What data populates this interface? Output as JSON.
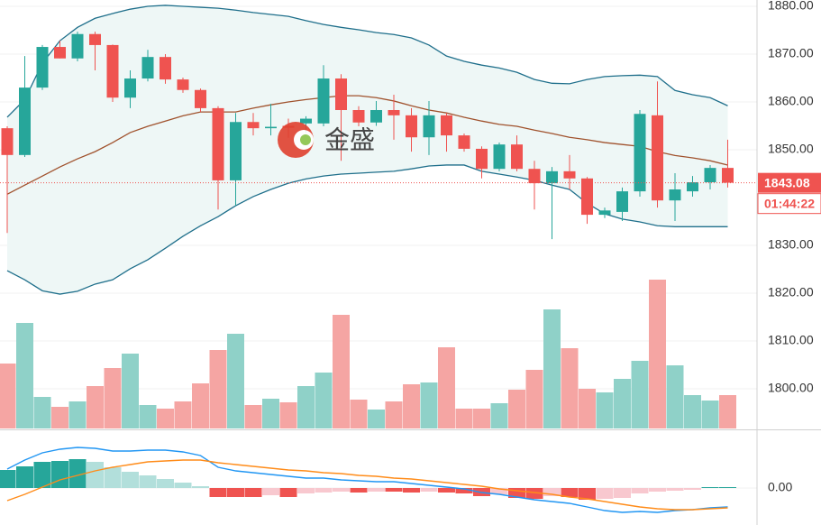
{
  "watermark": "金盛",
  "chart_data": [
    {
      "type": "candlestick",
      "ylim": [
        1791.7,
        1881.32
      ],
      "yticks": [
        {
          "value": 1880,
          "label": "1880.00"
        },
        {
          "value": 1870,
          "label": "1870.00"
        },
        {
          "value": 1860,
          "label": "1860.00"
        },
        {
          "value": 1850,
          "label": "1850.00"
        },
        {
          "value": 1830,
          "label": "1830.00"
        },
        {
          "value": 1820,
          "label": "1820.00"
        },
        {
          "value": 1810,
          "label": "1810.00"
        },
        {
          "value": 1800,
          "label": "1800.00"
        }
      ],
      "grid": true,
      "up_color": "#26a69a",
      "down_color": "#ef5350",
      "open": [
        1854.5,
        1848.9,
        1863.0,
        1871.5,
        1869.1,
        1874.2,
        1871.9,
        1860.9,
        1864.9,
        1869.4,
        1864.7,
        1862.5,
        1858.7,
        1843.6,
        1855.8,
        1854.5,
        1855.0,
        1855.5,
        1855.5,
        1864.9,
        1858.3,
        1855.7,
        1858.3,
        1857.2,
        1852.6,
        1857.2,
        1853.0,
        1850.2,
        1846.0,
        1851.1,
        1846.0,
        1843.0,
        1845.5,
        1844.0,
        1836.4,
        1837.0,
        1841.3,
        1857.2,
        1839.4,
        1841.3,
        1843.2,
        1846.2
      ],
      "high": [
        1854.9,
        1869.6,
        1871.9,
        1872.8,
        1874.7,
        1874.7,
        1872.0,
        1866.6,
        1870.9,
        1870.0,
        1865.1,
        1862.8,
        1859.1,
        1857.7,
        1857.7,
        1859.6,
        1856.5,
        1857.0,
        1867.7,
        1865.8,
        1859.1,
        1860.2,
        1861.5,
        1858.7,
        1860.2,
        1857.7,
        1853.4,
        1850.7,
        1851.5,
        1853.0,
        1847.7,
        1846.4,
        1848.9,
        1844.3,
        1837.9,
        1842.1,
        1858.3,
        1864.3,
        1845.1,
        1844.5,
        1846.8,
        1852.1
      ],
      "low": [
        1832.6,
        1848.5,
        1862.5,
        1869.1,
        1868.5,
        1866.6,
        1860.0,
        1858.7,
        1864.3,
        1863.8,
        1861.9,
        1857.9,
        1837.5,
        1838.3,
        1853.0,
        1853.0,
        1852.5,
        1853.5,
        1854.9,
        1847.7,
        1854.9,
        1855.0,
        1852.1,
        1849.6,
        1848.9,
        1849.6,
        1849.6,
        1844.0,
        1845.5,
        1845.5,
        1837.5,
        1831.3,
        1841.7,
        1834.5,
        1835.7,
        1835.1,
        1840.2,
        1837.9,
        1835.1,
        1840.2,
        1841.7,
        1842.1
      ],
      "close": [
        1848.9,
        1863.0,
        1871.5,
        1869.1,
        1874.2,
        1871.9,
        1860.9,
        1864.9,
        1869.4,
        1864.7,
        1862.5,
        1858.7,
        1843.6,
        1855.8,
        1854.5,
        1854.8,
        1854.6,
        1856.5,
        1864.9,
        1858.3,
        1855.7,
        1858.3,
        1857.2,
        1852.6,
        1857.2,
        1853.0,
        1850.2,
        1846.0,
        1851.1,
        1846.0,
        1843.0,
        1845.5,
        1844.0,
        1836.4,
        1837.3,
        1841.3,
        1857.5,
        1839.4,
        1841.7,
        1843.2,
        1846.2,
        1843.1
      ],
      "bands": [
        {
          "name": "upper",
          "color": "#1f6f8b",
          "values": [
            1856.8,
            1860.5,
            1868.1,
            1872.8,
            1875.6,
            1877.5,
            1878.5,
            1879.4,
            1880.0,
            1880.2,
            1880.0,
            1879.8,
            1879.6,
            1879.2,
            1878.7,
            1878.3,
            1877.9,
            1877.0,
            1876.2,
            1875.6,
            1875.1,
            1874.5,
            1874.1,
            1873.4,
            1871.9,
            1869.6,
            1868.5,
            1867.7,
            1867.1,
            1866.2,
            1864.7,
            1863.9,
            1863.8,
            1864.7,
            1865.3,
            1865.5,
            1865.6,
            1865.3,
            1862.4,
            1861.5,
            1860.9,
            1859.2
          ]
        },
        {
          "name": "middle",
          "color": "#a0522d",
          "values": [
            1840.7,
            1842.6,
            1844.5,
            1846.4,
            1848.1,
            1849.6,
            1851.5,
            1853.6,
            1854.9,
            1856.0,
            1857.1,
            1857.9,
            1857.9,
            1857.9,
            1858.7,
            1859.4,
            1860.0,
            1860.5,
            1860.9,
            1861.3,
            1861.3,
            1860.9,
            1860.2,
            1859.2,
            1858.3,
            1857.7,
            1856.8,
            1856.0,
            1855.3,
            1854.9,
            1854.1,
            1853.4,
            1852.6,
            1852.1,
            1851.5,
            1851.1,
            1850.7,
            1849.6,
            1848.8,
            1848.3,
            1847.7,
            1846.8
          ]
        },
        {
          "name": "lower",
          "color": "#1f6f8b",
          "values": [
            1824.7,
            1822.8,
            1820.5,
            1819.8,
            1820.4,
            1821.9,
            1822.8,
            1825.1,
            1827.0,
            1829.4,
            1831.9,
            1834.1,
            1836.0,
            1838.3,
            1840.2,
            1841.7,
            1843.0,
            1843.9,
            1844.5,
            1844.9,
            1845.1,
            1845.3,
            1845.5,
            1846.0,
            1846.6,
            1846.8,
            1846.8,
            1845.5,
            1844.9,
            1844.3,
            1843.6,
            1842.6,
            1841.7,
            1838.8,
            1836.6,
            1835.5,
            1834.9,
            1834.1,
            1833.9,
            1833.9,
            1833.9,
            1833.9
          ]
        }
      ],
      "band_fill": "#eef7f6",
      "last_price": 1843.08,
      "countdown": "01:44:22"
    },
    {
      "type": "volume",
      "ylim": [
        0,
        200
      ],
      "up_color": "#8fd1c8",
      "down_color": "#f5a5a3",
      "values": [
        72,
        117,
        35,
        24,
        30,
        47,
        67,
        83,
        26,
        22,
        30,
        50,
        87,
        105,
        26,
        33,
        29,
        47,
        62,
        126,
        32,
        21,
        30,
        49,
        51,
        90,
        22,
        22,
        28,
        43,
        65,
        132,
        89,
        44,
        40,
        55,
        75,
        165,
        70,
        37,
        31,
        37
      ]
    },
    {
      "type": "macd",
      "ylim": [
        -4.1,
        6.3
      ],
      "yticks": [
        {
          "value": 0,
          "label": "0.00"
        }
      ],
      "histogram": [
        2.0,
        2.4,
        2.9,
        3.0,
        3.2,
        2.9,
        2.3,
        1.8,
        1.4,
        1.0,
        0.6,
        0.2,
        -1.0,
        -1.0,
        -1.0,
        -0.8,
        -1.0,
        -0.6,
        -0.5,
        -0.4,
        -0.5,
        -0.4,
        -0.4,
        -0.5,
        -0.4,
        -0.5,
        -0.6,
        -0.9,
        -0.7,
        -1.1,
        -1.2,
        -0.9,
        -1.0,
        -1.3,
        -1.2,
        -1.1,
        -0.6,
        -0.4,
        -0.3,
        -0.2,
        0.1,
        0.1
      ],
      "series": [
        {
          "name": "DIF",
          "color": "#2196f3",
          "values": [
            2.1,
            3.1,
            3.9,
            4.3,
            4.5,
            4.4,
            4.1,
            4.1,
            4.2,
            4.2,
            4.0,
            3.6,
            2.3,
            1.9,
            1.7,
            1.5,
            1.3,
            1.1,
            1.1,
            0.9,
            0.8,
            0.7,
            0.7,
            0.5,
            0.3,
            0.1,
            -0.1,
            -0.5,
            -0.7,
            -1.0,
            -1.3,
            -1.5,
            -1.7,
            -2.1,
            -2.5,
            -2.7,
            -2.6,
            -2.7,
            -2.5,
            -2.4,
            -2.2,
            -2.1
          ]
        },
        {
          "name": "DEA",
          "color": "#ff8c1a",
          "values": [
            -1.4,
            -0.7,
            0.1,
            0.9,
            1.4,
            1.9,
            2.3,
            2.6,
            2.9,
            3.0,
            3.1,
            3.1,
            2.8,
            2.6,
            2.4,
            2.2,
            2.0,
            1.9,
            1.7,
            1.6,
            1.4,
            1.3,
            1.1,
            1.0,
            0.8,
            0.6,
            0.4,
            0.2,
            -0.1,
            -0.3,
            -0.5,
            -0.7,
            -1.0,
            -1.2,
            -1.5,
            -1.8,
            -2.1,
            -2.3,
            -2.4,
            -2.4,
            -2.3,
            -2.2
          ]
        }
      ],
      "colors": {
        "up_strong": "#26a69a",
        "up_weak": "#b2dfdb",
        "down_strong": "#ef5350",
        "down_weak": "#f8c8cf"
      }
    }
  ]
}
